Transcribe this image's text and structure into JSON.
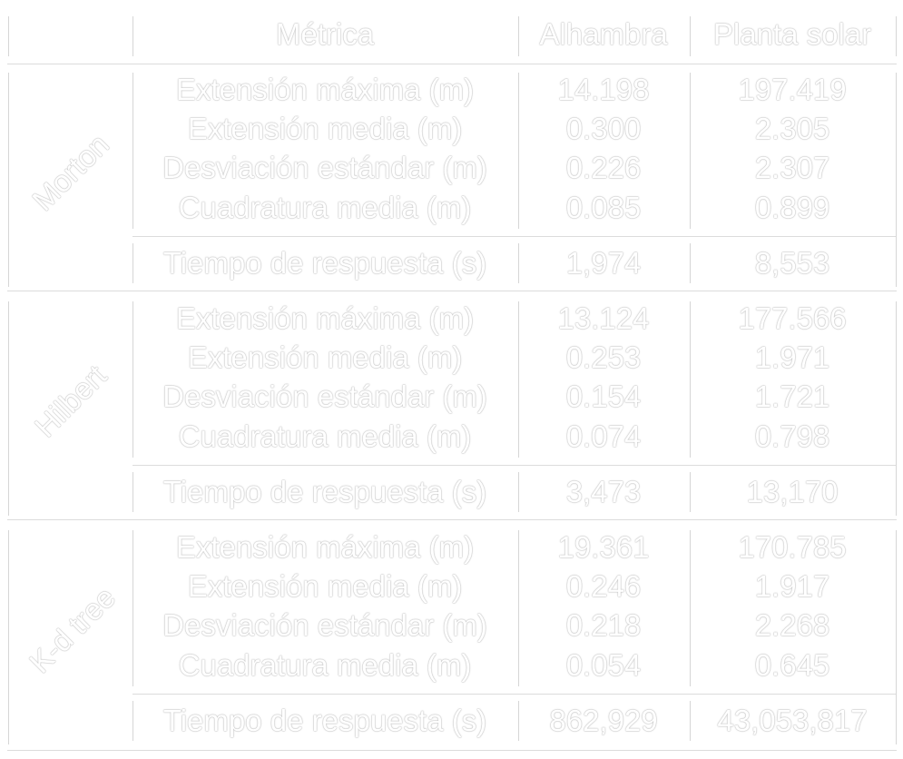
{
  "table": {
    "headers": {
      "metric": "Métrica",
      "alhambra": "Alhambra",
      "planta": "Planta solar"
    },
    "groups": [
      {
        "name": "Morton",
        "rows": [
          {
            "metric": "Extensión máxima (m)",
            "alhambra": "14.198",
            "planta": "197.419"
          },
          {
            "metric": "Extensión media (m)",
            "alhambra": "0.300",
            "planta": "2.305"
          },
          {
            "metric": "Desviación estándar (m)",
            "alhambra": "0.226",
            "planta": "2.307"
          },
          {
            "metric": "Cuadratura media (m)",
            "alhambra": "0.085",
            "planta": "0.899"
          }
        ],
        "time": {
          "metric": "Tiempo de respuesta (s)",
          "alhambra": "1,974",
          "planta": "8,553"
        }
      },
      {
        "name": "Hilbert",
        "rows": [
          {
            "metric": "Extensión máxima (m)",
            "alhambra": "13.124",
            "planta": "177.566"
          },
          {
            "metric": "Extensión media (m)",
            "alhambra": "0.253",
            "planta": "1.971"
          },
          {
            "metric": "Desviación estándar (m)",
            "alhambra": "0.154",
            "planta": "1.721"
          },
          {
            "metric": "Cuadratura media (m)",
            "alhambra": "0.074",
            "planta": "0.798"
          }
        ],
        "time": {
          "metric": "Tiempo de respuesta (s)",
          "alhambra": "3,473",
          "planta": "13,170"
        }
      },
      {
        "name": "K-d tree",
        "rows": [
          {
            "metric": "Extensión máxima (m)",
            "alhambra": "19.361",
            "planta": "170.785"
          },
          {
            "metric": "Extensión media (m)",
            "alhambra": "0.246",
            "planta": "1.917"
          },
          {
            "metric": "Desviación estándar (m)",
            "alhambra": "0.218",
            "planta": "2.268"
          },
          {
            "metric": "Cuadratura media (m)",
            "alhambra": "0.054",
            "planta": "0.645"
          }
        ],
        "time": {
          "metric": "Tiempo de respuesta (s)",
          "alhambra": "862,929",
          "planta": "43,053,817"
        }
      }
    ]
  }
}
